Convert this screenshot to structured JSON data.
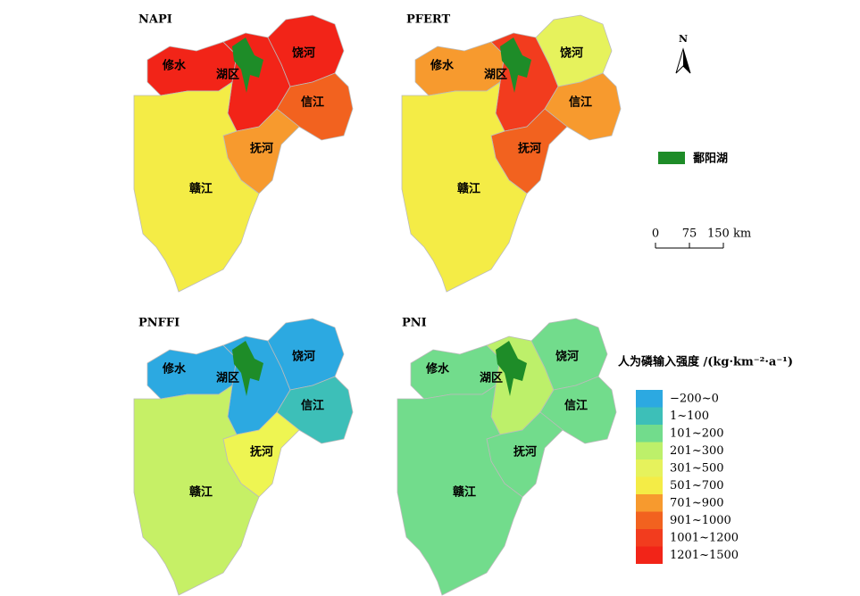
{
  "maps": [
    {
      "title": "NAPI",
      "regions": [
        {
          "name": "修水",
          "color": "#f22418"
        },
        {
          "name": "湖区",
          "color": "#f22418"
        },
        {
          "name": "饶河",
          "color": "#f22418"
        },
        {
          "name": "信江",
          "color": "#f2621f"
        },
        {
          "name": "抚河",
          "color": "#f79a2e"
        },
        {
          "name": "赣江",
          "color": "#f4ec46"
        }
      ]
    },
    {
      "title": "PFERT",
      "regions": [
        {
          "name": "修水",
          "color": "#f79a2e"
        },
        {
          "name": "湖区",
          "color": "#f23c1e"
        },
        {
          "name": "饶河",
          "color": "#e6f25c"
        },
        {
          "name": "信江",
          "color": "#f79a2e"
        },
        {
          "name": "抚河",
          "color": "#f2621f"
        },
        {
          "name": "赣江",
          "color": "#f4ec46"
        }
      ]
    },
    {
      "title": "PNFFI",
      "regions": [
        {
          "name": "修水",
          "color": "#2ca9e1"
        },
        {
          "name": "湖区",
          "color": "#2ca9e1"
        },
        {
          "name": "饶河",
          "color": "#2ca9e1"
        },
        {
          "name": "信江",
          "color": "#3dbfb8"
        },
        {
          "name": "抚河",
          "color": "#eef552"
        },
        {
          "name": "赣江",
          "color": "#c6f066"
        }
      ]
    },
    {
      "title": "PNI",
      "regions": [
        {
          "name": "修水",
          "color": "#72dc8c"
        },
        {
          "name": "湖区",
          "color": "#bdf06a"
        },
        {
          "name": "饶河",
          "color": "#72dc8c"
        },
        {
          "name": "信江",
          "color": "#72dc8c"
        },
        {
          "name": "抚河",
          "color": "#72dc8c"
        },
        {
          "name": "赣江",
          "color": "#72dc8c"
        }
      ]
    }
  ],
  "north": "N",
  "lake": {
    "name": "鄱阳湖",
    "color": "#1e8c28"
  },
  "scale_bar": [
    "0",
    "75",
    "150 km"
  ],
  "legend": {
    "title": "人为磷输入强度 /(kg·km⁻²·a⁻¹)",
    "classes": [
      {
        "label": "−200~0",
        "color": "#2ca9e1"
      },
      {
        "label": "1~100",
        "color": "#3dbfb8"
      },
      {
        "label": "101~200",
        "color": "#72dc8c"
      },
      {
        "label": "201~300",
        "color": "#bdf06a"
      },
      {
        "label": "301~500",
        "color": "#e6f25c"
      },
      {
        "label": "501~700",
        "color": "#f4ec46"
      },
      {
        "label": "701~900",
        "color": "#f79a2e"
      },
      {
        "label": "901~1000",
        "color": "#f2621f"
      },
      {
        "label": "1001~1200",
        "color": "#f23c1e"
      },
      {
        "label": "1201~1500",
        "color": "#f22418"
      }
    ]
  }
}
